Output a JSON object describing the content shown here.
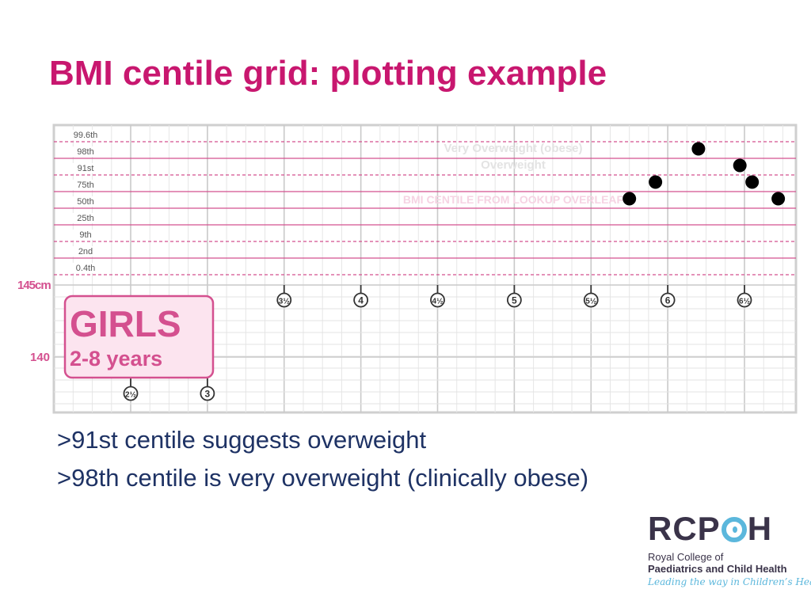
{
  "slide": {
    "title": "BMI centile grid: plotting example",
    "bullets": [
      ">91st centile suggests overweight",
      ">98th centile is very overweight (clinically obese)"
    ]
  },
  "logo": {
    "word_left": "RCP",
    "word_right": "H",
    "org_line1": "Royal College of",
    "org_line2": "Paediatrics and Child Health",
    "tagline": "Leading the way in Children’s Health"
  },
  "colors": {
    "title": "#c8176f",
    "bullet_text": "#1e3264",
    "centile_line": "#d4508f",
    "badge_fill": "#fce4ef",
    "badge_text": "#d4508f",
    "grid": "#d9d9d9",
    "logo_dark": "#3a3349",
    "logo_accent": "#5bb7dc"
  },
  "chart_data": {
    "type": "scatter",
    "centiles": [
      "99.6th",
      "98th",
      "91st",
      "75th",
      "50th",
      "25th",
      "9th",
      "2nd",
      "0.4th"
    ],
    "age_ticks_row1": [
      "3½",
      "4",
      "4½",
      "5",
      "5½",
      "6",
      "6½"
    ],
    "age_ticks_row2": [
      "2½",
      "3"
    ],
    "height_labels": [
      "145cm",
      "140"
    ],
    "band_labels": [
      "Very Overweight (obese)",
      "Overweight"
    ],
    "overlay_note": "BMI CENTILE FROM LOOKUP OVERLEAF",
    "badge": {
      "title": "GIRLS",
      "subtitle": "2-8 years"
    },
    "series": [
      {
        "points": [
          {
            "age": 5.75,
            "centile": "75th"
          },
          {
            "age": 5.92,
            "centile": "91st"
          },
          {
            "age": 6.2,
            "centile": "99.6th"
          },
          {
            "age": 6.47,
            "centile": "98th"
          },
          {
            "age": 6.55,
            "centile": "91st"
          },
          {
            "age": 6.72,
            "centile": "75th"
          }
        ]
      }
    ],
    "xlim": [
      2.0,
      6.85
    ]
  }
}
